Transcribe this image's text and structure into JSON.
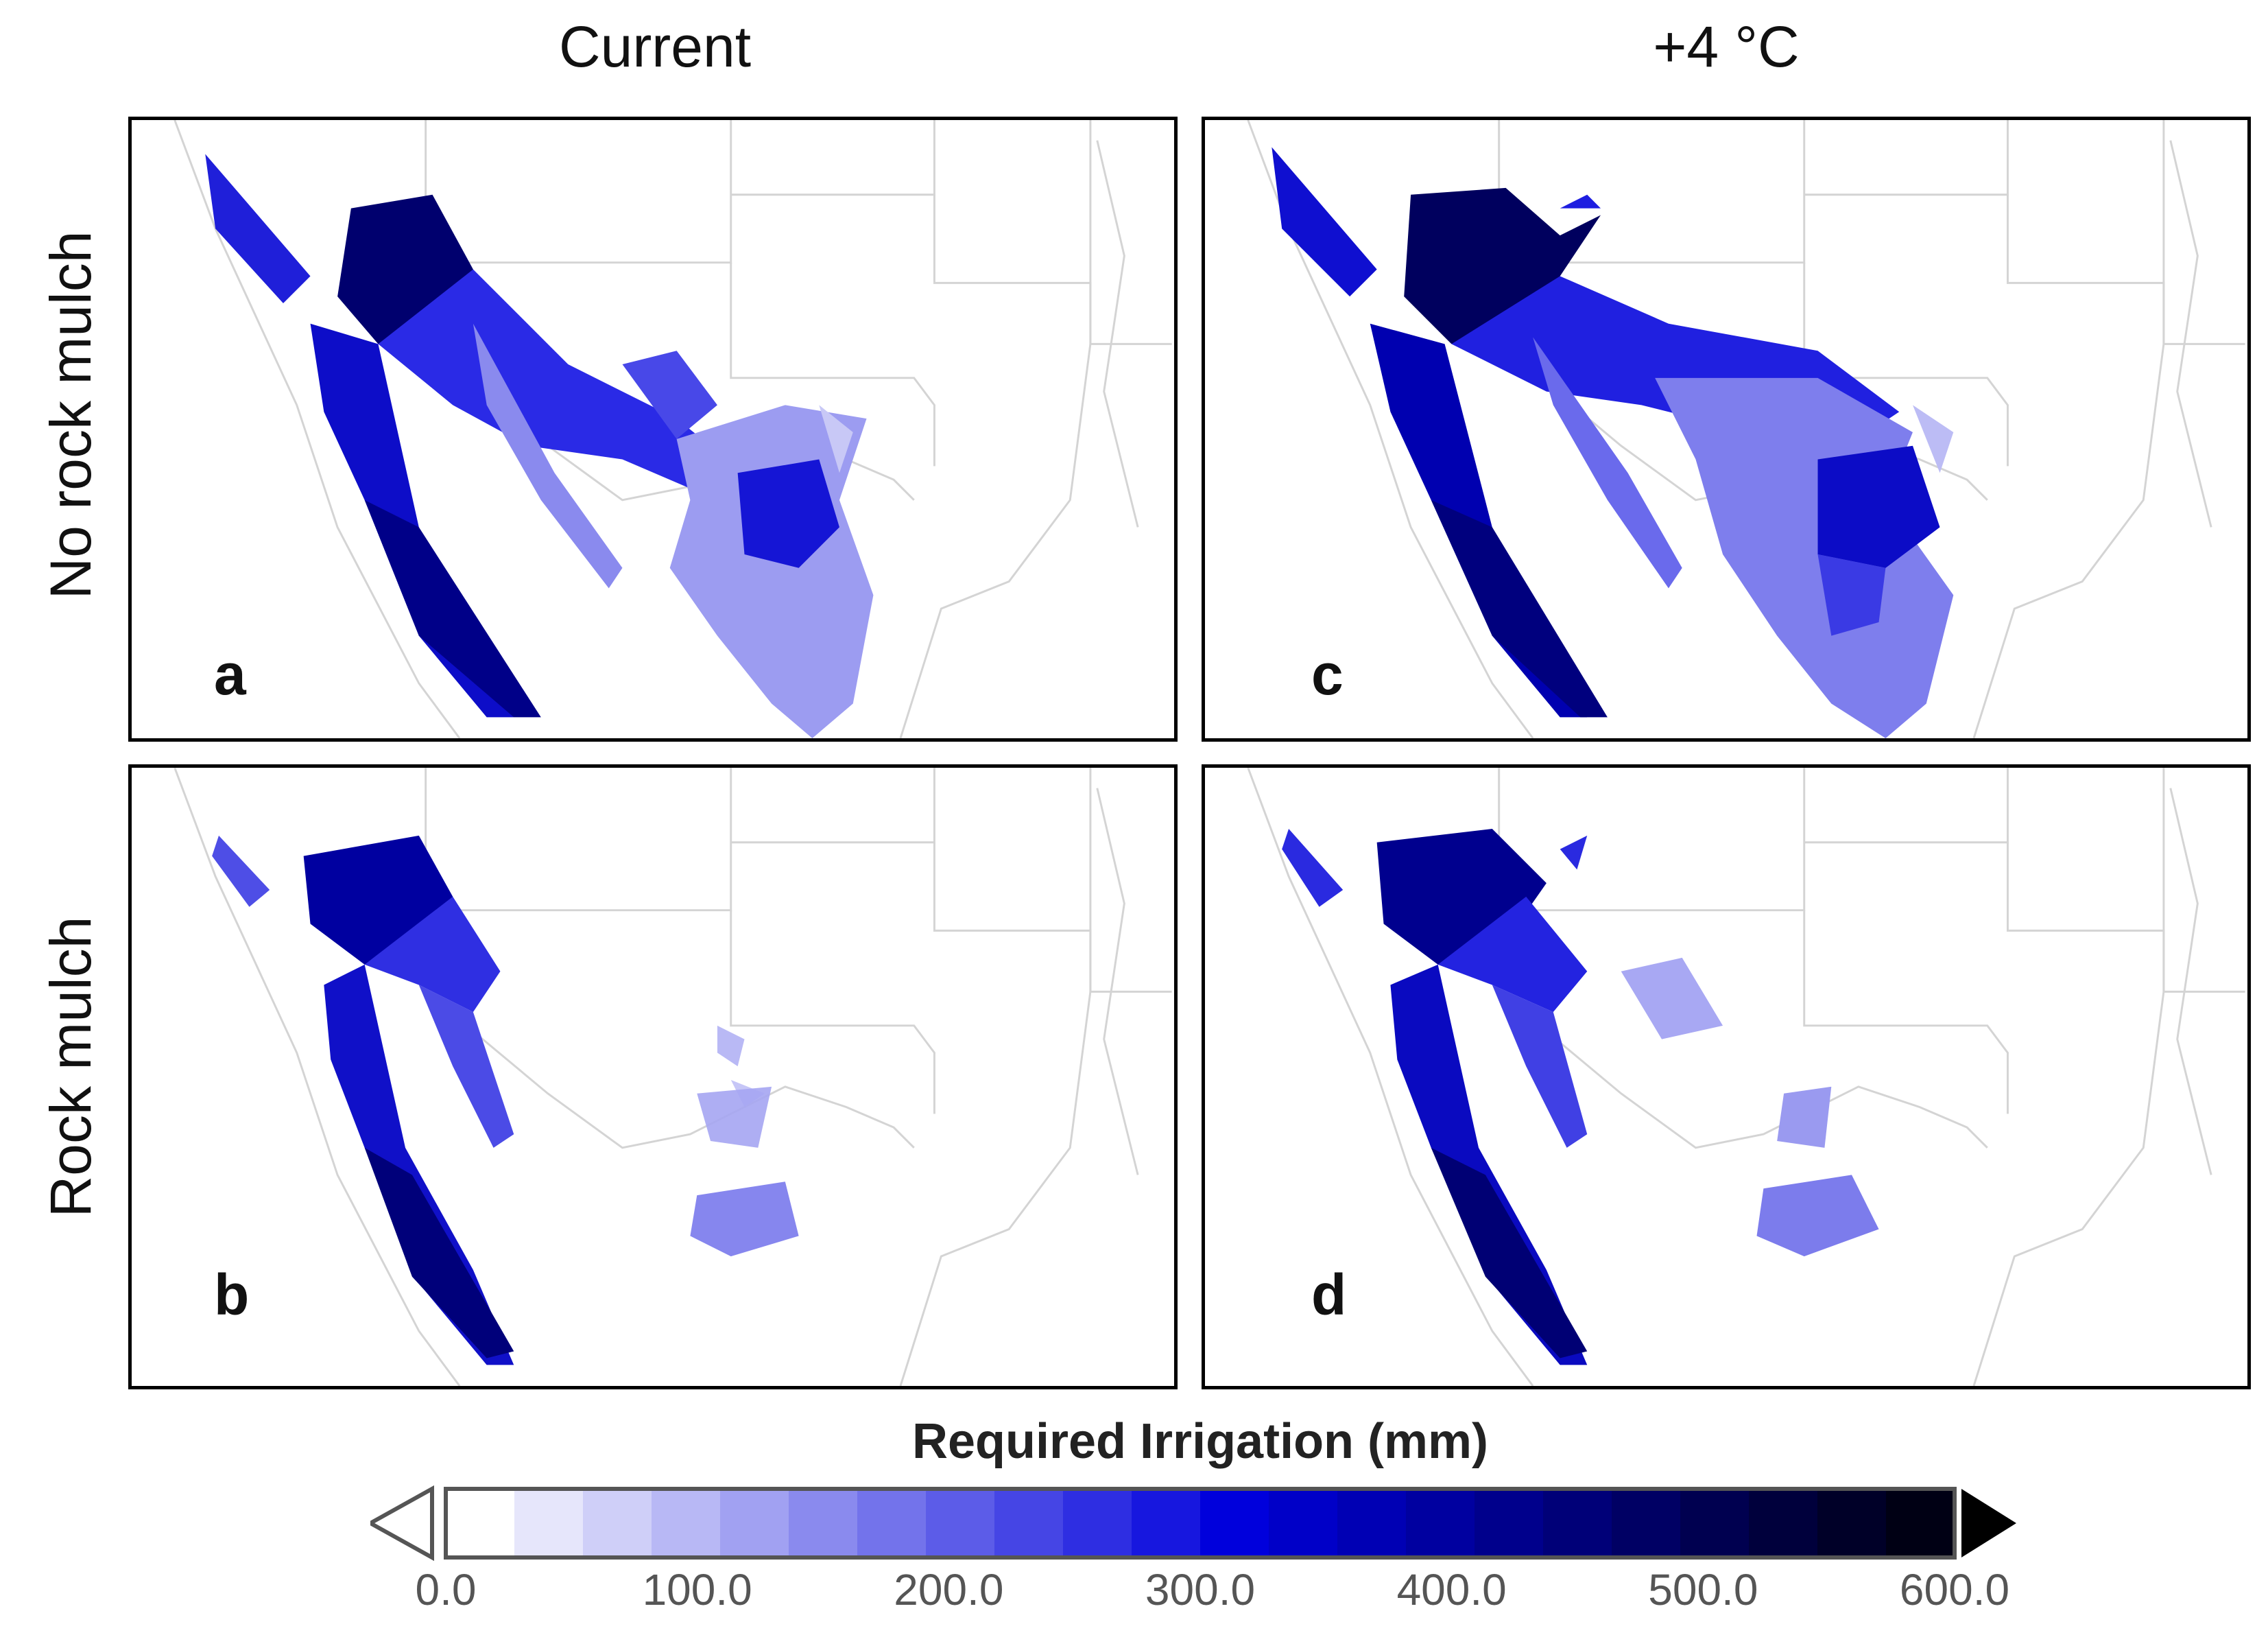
{
  "columns": [
    "Current",
    "+4 °C"
  ],
  "rows": [
    "No rock mulch",
    "Rock mulch"
  ],
  "panels": [
    {
      "id": "a",
      "column": "Current",
      "row": "No rock mulch"
    },
    {
      "id": "c",
      "column": "+4 °C",
      "row": "No rock mulch"
    },
    {
      "id": "b",
      "column": "Current",
      "row": "Rock mulch"
    },
    {
      "id": "d",
      "column": "+4 °C",
      "row": "Rock mulch"
    }
  ],
  "colorbar": {
    "title": "Required Irrigation (mm)",
    "min": 0.0,
    "max": 600.0,
    "ticks": [
      "0.0",
      "100.0",
      "200.0",
      "300.0",
      "400.0",
      "500.0",
      "600.0"
    ],
    "colors": [
      "#ffffff",
      "#e6e6fb",
      "#cfcff8",
      "#b8b8f5",
      "#a1a1f2",
      "#8a8aee",
      "#7373eb",
      "#5c5ce8",
      "#4545e5",
      "#2e2ee2",
      "#1717df",
      "#0000dc",
      "#0000c8",
      "#0000b4",
      "#0000a0",
      "#00008c",
      "#000078",
      "#000064",
      "#000050",
      "#00003c",
      "#000028",
      "#000014"
    ],
    "extend_min_color": "#ffffff",
    "extend_max_color": "#000000"
  }
}
